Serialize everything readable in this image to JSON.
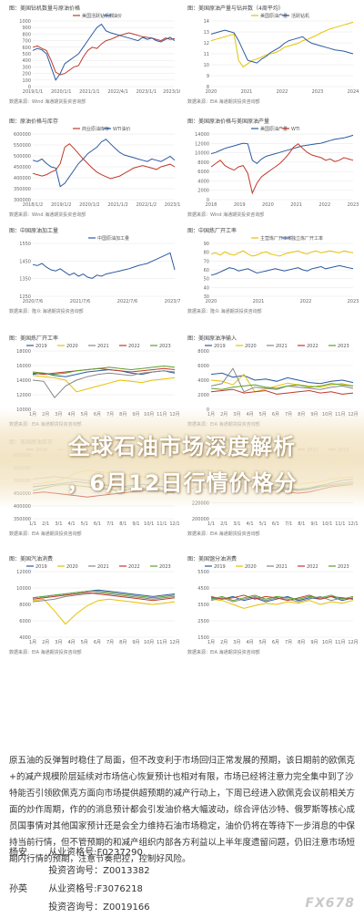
{
  "panels": [
    {
      "title": "图：美国钻机数量与原油价格",
      "source": "数据来源：Wind  海通期货投资咨询部",
      "legend": [
        "美国活跃钻机数",
        "油价"
      ],
      "colors": [
        "#c0392b",
        "#2c5aa0"
      ],
      "type": "line",
      "yticks": [
        "1000",
        "900",
        "800",
        "700",
        "600",
        "500",
        "400",
        "300",
        "200",
        "100",
        "0"
      ],
      "xticks": [
        "2019/1/1",
        "2020/1/1",
        "2021/1/1",
        "2022/4/1",
        "2023/1/1",
        "2023/10/1"
      ],
      "series": [
        [
          60,
          62,
          58,
          55,
          40,
          22,
          18,
          20,
          25,
          30,
          32,
          45,
          55,
          60,
          58,
          65,
          70,
          72,
          75,
          78,
          80,
          82,
          80,
          78,
          76,
          75,
          74,
          72,
          70,
          74,
          72,
          73
        ],
        [
          55,
          58,
          56,
          50,
          30,
          10,
          20,
          35,
          40,
          45,
          50,
          60,
          70,
          80,
          90,
          95,
          85,
          82,
          80,
          78,
          76,
          74,
          72,
          70,
          75,
          72,
          74,
          70,
          68,
          72,
          75,
          70
        ]
      ]
    },
    {
      "title": "图：美国原油产量与钻井数（4周平均）",
      "source": "数据来源：EIA  海通期货投资咨询部",
      "legend": [
        "美国原油产量",
        "活跃钻机"
      ],
      "colors": [
        "#e6c200",
        "#2c5aa0"
      ],
      "type": "line",
      "yticks": [
        "14",
        "13",
        "12",
        "11",
        "10",
        "9",
        "8"
      ],
      "xticks": [
        "2020",
        "2021",
        "2022",
        "2023",
        "2024"
      ],
      "series": [
        [
          70,
          72,
          74,
          76,
          78,
          80,
          40,
          30,
          35,
          40,
          42,
          45,
          48,
          50,
          52,
          55,
          60,
          62,
          64,
          66,
          70,
          72,
          75,
          78,
          82,
          85,
          88,
          90,
          92,
          94,
          96,
          98
        ],
        [
          80,
          82,
          84,
          86,
          84,
          82,
          70,
          55,
          40,
          38,
          36,
          42,
          46,
          52,
          56,
          60,
          66,
          70,
          72,
          74,
          76,
          70,
          66,
          64,
          62,
          60,
          58,
          56,
          55,
          54,
          52,
          50
        ]
      ]
    },
    {
      "title": "图：原油价格与库存",
      "source": "数据来源：Wind  海通期货投资咨询部",
      "legend": [
        "商业原油库存",
        "WTI油价"
      ],
      "colors": [
        "#c0392b",
        "#2c5aa0"
      ],
      "type": "line",
      "yticks": [
        "600000",
        "550000",
        "500000",
        "450000",
        "400000",
        "350000",
        "300000"
      ],
      "xticks": [
        "2018/1/2",
        "2019/1/2",
        "2020/1/2",
        "2021/1/2",
        "2022/1/2",
        "2023/1/2"
      ],
      "series": [
        [
          40,
          38,
          36,
          38,
          42,
          45,
          55,
          80,
          85,
          78,
          70,
          62,
          55,
          48,
          42,
          38,
          35,
          32,
          34,
          36,
          40,
          44,
          48,
          50,
          52,
          50,
          48,
          46,
          50,
          52,
          54,
          50
        ],
        [
          60,
          58,
          62,
          55,
          50,
          48,
          20,
          25,
          35,
          45,
          55,
          62,
          70,
          75,
          80,
          88,
          92,
          85,
          78,
          72,
          68,
          66,
          64,
          62,
          60,
          58,
          62,
          60,
          58,
          62,
          66,
          60
        ]
      ]
    },
    {
      "title": "图：美国原油价格与美国原油产量",
      "source": "数据来源：Wind  海通期货投资咨询部",
      "legend": [
        "美国原油产量",
        "WTI"
      ],
      "colors": [
        "#2c5aa0",
        "#c0392b"
      ],
      "type": "line",
      "yticks": [
        "14000",
        "12000",
        "10000",
        "8000",
        "6000",
        "4000",
        "2000",
        "0"
      ],
      "xticks": [
        "2018",
        "2019",
        "2020",
        "2021",
        "2022",
        "2023"
      ],
      "series": [
        [
          70,
          72,
          75,
          78,
          80,
          82,
          84,
          86,
          85,
          60,
          55,
          62,
          66,
          68,
          70,
          72,
          74,
          76,
          78,
          80,
          82,
          83,
          84,
          85,
          86,
          88,
          90,
          92,
          93,
          94,
          96,
          98
        ],
        [
          50,
          55,
          60,
          52,
          48,
          45,
          50,
          52,
          40,
          10,
          25,
          35,
          40,
          45,
          50,
          55,
          62,
          70,
          80,
          85,
          78,
          72,
          68,
          66,
          64,
          60,
          62,
          58,
          60,
          64,
          62,
          60
        ]
      ]
    },
    {
      "title": "图：中国原油加工量",
      "source": "数据来源：隆众  海通期货投资咨询部",
      "legend": [
        "中国原油加工量"
      ],
      "colors": [
        "#2c5aa0"
      ],
      "type": "line",
      "yticks": [
        "1550",
        "1450",
        "1350",
        "1250"
      ],
      "xticks": [
        "2020/7/6",
        "2021/7/6",
        "2022/7/6",
        "2023/7/6"
      ],
      "series": [
        [
          60,
          58,
          62,
          55,
          50,
          48,
          52,
          46,
          40,
          44,
          38,
          42,
          36,
          34,
          40,
          38,
          42,
          44,
          46,
          48,
          50,
          52,
          55,
          58,
          60,
          62,
          66,
          70,
          74,
          78,
          82,
          50
        ]
      ]
    },
    {
      "title": "图：中国炼厂开工率",
      "source": "数据来源：隆众  海通期货投资咨询部",
      "legend": [
        "主营炼厂开工率",
        "独立炼厂开工率"
      ],
      "colors": [
        "#e6c200",
        "#2c5aa0"
      ],
      "type": "line",
      "yticks": [
        "90",
        "80",
        "70",
        "60",
        "50",
        "40",
        "30"
      ],
      "xticks": [
        "2020",
        "2021",
        "2022",
        "2023"
      ],
      "series": [
        [
          80,
          82,
          78,
          84,
          80,
          78,
          82,
          86,
          80,
          76,
          78,
          82,
          84,
          80,
          78,
          76,
          80,
          82,
          84,
          86,
          82,
          80,
          84,
          86,
          82,
          84,
          86,
          84,
          82,
          86,
          84,
          82
        ],
        [
          40,
          42,
          46,
          50,
          54,
          52,
          48,
          50,
          52,
          48,
          44,
          46,
          48,
          50,
          52,
          50,
          48,
          50,
          52,
          54,
          50,
          48,
          52,
          54,
          56,
          52,
          54,
          56,
          58,
          56,
          54,
          52
        ]
      ]
    },
    {
      "title": "图：美国炼厂开工率",
      "source": "数据来源：EIA  海通期货投资咨询部",
      "legend": [
        "2019",
        "2020",
        "2021",
        "2022",
        "2023"
      ],
      "colors": [
        "#2c5aa0",
        "#e6c200",
        "#888888",
        "#c0392b",
        "#5aa02c"
      ],
      "type": "line",
      "yticks": [
        "18000",
        "16000",
        "14000",
        "12000",
        "10000"
      ],
      "xticks": [
        "1月",
        "2月",
        "3月",
        "4月",
        "5月",
        "6月",
        "7月",
        "8月",
        "9月",
        "10月",
        "11月",
        "12月"
      ],
      "series": [
        [
          60,
          62,
          58,
          56,
          60,
          64,
          66,
          68,
          66,
          62,
          60,
          64,
          66,
          62
        ],
        [
          58,
          56,
          54,
          50,
          30,
          35,
          40,
          45,
          50,
          48,
          46,
          50,
          52,
          54
        ],
        [
          50,
          48,
          20,
          40,
          50,
          56,
          60,
          62,
          60,
          58,
          62,
          64,
          66,
          64
        ],
        [
          62,
          60,
          62,
          64,
          66,
          68,
          70,
          68,
          66,
          64,
          66,
          68,
          70,
          68
        ],
        [
          64,
          62,
          60,
          62,
          66,
          68,
          70,
          72,
          70,
          68,
          70,
          72,
          74,
          72
        ]
      ]
    },
    {
      "title": "图：美国原油净输入",
      "source": "数据来源：EIA  海通期货投资咨询部",
      "legend": [
        "2019",
        "2020",
        "2021",
        "2022",
        "2023"
      ],
      "colors": [
        "#2c5aa0",
        "#e6c200",
        "#888888",
        "#c0392b",
        "#5aa02c"
      ],
      "type": "line",
      "yticks": [
        "8000",
        "6000",
        "4000",
        "2000",
        "0"
      ],
      "xticks": [
        "1月",
        "2月",
        "3月",
        "4月",
        "5月",
        "6月",
        "7月",
        "8月",
        "9月",
        "10月",
        "11月",
        "12月"
      ],
      "series": [
        [
          60,
          62,
          55,
          58,
          50,
          52,
          48,
          54,
          50,
          46,
          44,
          48,
          50,
          46
        ],
        [
          50,
          48,
          42,
          60,
          30,
          35,
          40,
          45,
          42,
          40,
          38,
          42,
          44,
          40
        ],
        [
          40,
          44,
          70,
          30,
          38,
          36,
          34,
          40,
          38,
          36,
          34,
          38,
          40,
          36
        ],
        [
          30,
          32,
          34,
          28,
          30,
          32,
          26,
          28,
          30,
          32,
          28,
          30,
          26,
          28
        ],
        [
          36,
          34,
          38,
          40,
          42,
          38,
          36,
          40,
          42,
          38,
          40,
          44,
          42,
          40
        ]
      ]
    },
    {
      "title": "图：美国原油库存",
      "source": "数据来源：EIA  海通期货投资咨询部",
      "legend": [
        "2019",
        "2020",
        "2021",
        "2022",
        "2023"
      ],
      "colors": [
        "#2c5aa0",
        "#e6c200",
        "#888888",
        "#c0392b",
        "#5aa02c"
      ],
      "type": "line",
      "yticks": [
        "600000",
        "550000",
        "500000",
        "450000",
        "400000",
        "350000"
      ],
      "xticks": [
        "1/1",
        "2/1",
        "3/1",
        "4/1",
        "5/1",
        "6/1",
        "7/1",
        "8/1",
        "9/1",
        "10/1",
        "11/1",
        "12/1"
      ],
      "series": [
        [
          50,
          52,
          54,
          56,
          58,
          56,
          54,
          52,
          50,
          52,
          54,
          52,
          50,
          48
        ],
        [
          54,
          56,
          58,
          64,
          72,
          76,
          74,
          72,
          70,
          68,
          66,
          64,
          62,
          60
        ],
        [
          62,
          64,
          66,
          64,
          62,
          60,
          56,
          52,
          50,
          48,
          46,
          44,
          42,
          40
        ],
        [
          40,
          42,
          40,
          38,
          36,
          34,
          36,
          38,
          40,
          42,
          44,
          46,
          44,
          42
        ],
        [
          44,
          48,
          52,
          54,
          52,
          50,
          48,
          46,
          44,
          46,
          48,
          46,
          44,
          46
        ]
      ]
    },
    {
      "title": "图：美国汽油库存",
      "source": "数据来源：EIA  海通期货投资咨询部",
      "legend": [
        "2019",
        "2020",
        "2021",
        "2022",
        "2023"
      ],
      "colors": [
        "#2c5aa0",
        "#e6c200",
        "#888888",
        "#c0392b",
        "#5aa02c"
      ],
      "type": "line",
      "yticks": [
        "280000",
        "260000",
        "240000",
        "220000",
        "200000"
      ],
      "xticks": [
        "1/1",
        "2/1",
        "3/1",
        "4/1",
        "5/1",
        "6/1",
        "7/1",
        "8/1",
        "9/1",
        "10/1",
        "11/1",
        "12/1"
      ],
      "series": [
        [
          60,
          64,
          66,
          62,
          58,
          54,
          50,
          48,
          46,
          48,
          52,
          56,
          60,
          62
        ],
        [
          62,
          66,
          68,
          72,
          70,
          66,
          60,
          56,
          54,
          56,
          58,
          62,
          64,
          66
        ],
        [
          58,
          62,
          64,
          60,
          56,
          52,
          48,
          46,
          44,
          46,
          50,
          54,
          56,
          58
        ],
        [
          52,
          56,
          58,
          54,
          50,
          46,
          44,
          42,
          40,
          42,
          46,
          50,
          52,
          54
        ],
        [
          56,
          60,
          62,
          58,
          52,
          48,
          46,
          44,
          46,
          48,
          50,
          52,
          54,
          56
        ]
      ]
    },
    {
      "title": "图：美国汽油消费",
      "source": "数据来源：EIA  海通期货投资咨询部",
      "legend": [
        "2019",
        "2020",
        "2021",
        "2022",
        "2023"
      ],
      "colors": [
        "#2c5aa0",
        "#e6c200",
        "#888888",
        "#c0392b",
        "#5aa02c"
      ],
      "type": "line",
      "yticks": [
        "12000",
        "10000",
        "8000",
        "6000",
        "4000"
      ],
      "xticks": [
        "1月",
        "2月",
        "3月",
        "4月",
        "5月",
        "6月",
        "7月",
        "8月",
        "9月",
        "10月",
        "11月",
        "12月"
      ],
      "series": [
        [
          60,
          62,
          64,
          66,
          68,
          70,
          72,
          70,
          68,
          66,
          64,
          62,
          64,
          66
        ],
        [
          56,
          58,
          40,
          20,
          36,
          48,
          56,
          58,
          56,
          54,
          52,
          50,
          52,
          54
        ],
        [
          54,
          56,
          58,
          62,
          64,
          66,
          68,
          66,
          64,
          62,
          60,
          58,
          60,
          62
        ],
        [
          58,
          60,
          62,
          64,
          66,
          68,
          66,
          64,
          62,
          60,
          58,
          56,
          58,
          60
        ],
        [
          60,
          62,
          64,
          66,
          68,
          70,
          70,
          68,
          66,
          64,
          62,
          60,
          62,
          64
        ]
      ]
    },
    {
      "title": "图：美国馏分油消费",
      "source": "数据来源：EIA  海通期货投资咨询部",
      "legend": [
        "2019",
        "2020",
        "2021",
        "2022",
        "2023"
      ],
      "colors": [
        "#2c5aa0",
        "#e6c200",
        "#888888",
        "#c0392b",
        "#5aa02c"
      ],
      "type": "line",
      "yticks": [
        "5500",
        "4500",
        "3500",
        "2500",
        "1500"
      ],
      "xticks": [
        "1月",
        "2月",
        "3月",
        "4月",
        "5月",
        "6月",
        "7月",
        "8月",
        "9月",
        "10月",
        "11月",
        "12月"
      ],
      "series": [
        [
          60,
          58,
          62,
          56,
          60,
          54,
          58,
          62,
          56,
          60,
          58,
          62,
          56,
          60
        ],
        [
          58,
          56,
          50,
          44,
          48,
          52,
          50,
          54,
          52,
          56,
          50,
          54,
          52,
          56
        ],
        [
          56,
          60,
          54,
          58,
          62,
          56,
          60,
          58,
          54,
          58,
          62,
          56,
          60,
          58
        ],
        [
          62,
          58,
          60,
          64,
          58,
          62,
          60,
          56,
          60,
          64,
          58,
          62,
          60,
          58
        ],
        [
          58,
          62,
          56,
          60,
          64,
          58,
          62,
          60,
          58,
          62,
          60,
          64,
          58,
          62
        ]
      ]
    }
  ],
  "overlay": {
    "line1": "全球石油市场深度解析",
    "line2": "，6月12日行情价格分"
  },
  "body_text": "原五油的反弹暂时稳住了局面，但不改变利于市场回归正常发展的预期，该日期前的欧佩克+的减产规模阶层延续对市场信心恢复预计也相对有限，市场已经将注意力完全集中到了沙特能否引领欧佩克方面向市场提供超预期的减产行动上，下周已经进入欧佩克会议前相关方面的炒作周期，作的的消息预计都会引发油价格大幅波动，综合评估沙特、俄罗斯等核心成员国事情对其他国家预计还是会全力维持石油市场稳定，油价仍将在等待下一步消息的中保持当前行情，但不管预期的和减产组织内部各方利益以上半年度遗留问题，仍旧注意市场短期内行情的预期，注意节奏把控，控制好风险。",
  "analysts": [
    {
      "label": "杨安",
      "line": "从业资格号:F0237290"
    },
    {
      "label": "",
      "line": "投资咨询号：Z0013382"
    },
    {
      "label": "孙英",
      "line": "从业资格号:F3076218"
    },
    {
      "label": "",
      "line": "投资咨询号：Z0019166"
    }
  ],
  "watermark": "FX678"
}
